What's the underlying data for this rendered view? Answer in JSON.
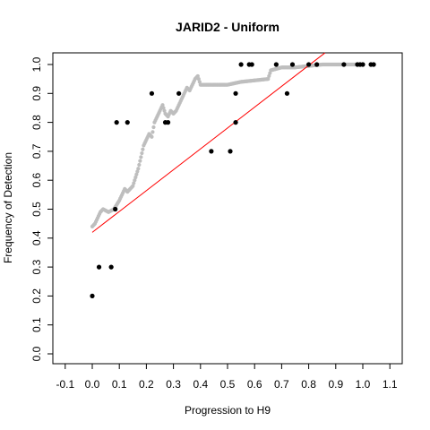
{
  "chart_data": {
    "type": "scatter",
    "title": "JARID2 - Uniform",
    "xlabel": "Progression to H9",
    "ylabel": "Frequency of Detection",
    "xlim": [
      -0.1,
      1.1
    ],
    "ylim": [
      0.0,
      1.0
    ],
    "xticks": [
      "-0.1",
      "0.0",
      "0.1",
      "0.2",
      "0.3",
      "0.4",
      "0.5",
      "0.6",
      "0.7",
      "0.8",
      "0.9",
      "1.0",
      "1.1"
    ],
    "yticks": [
      "0.0",
      "0.1",
      "0.2",
      "0.3",
      "0.4",
      "0.5",
      "0.6",
      "0.7",
      "0.8",
      "0.9",
      "1.0"
    ],
    "observed_points": {
      "color": "#000000",
      "x": [
        0.0,
        0.025,
        0.07,
        0.085,
        0.09,
        0.13,
        0.22,
        0.27,
        0.28,
        0.32,
        0.44,
        0.51,
        0.53,
        0.53,
        0.55,
        0.58,
        0.59,
        0.68,
        0.72,
        0.74,
        0.8,
        0.83,
        0.93,
        0.98,
        0.99,
        1.0,
        1.03,
        1.04
      ],
      "y": [
        0.2,
        0.3,
        0.3,
        0.5,
        0.8,
        0.8,
        0.9,
        0.8,
        0.8,
        0.9,
        0.7,
        0.7,
        0.8,
        0.9,
        1.0,
        1.0,
        1.0,
        1.0,
        0.9,
        1.0,
        1.0,
        1.0,
        1.0,
        1.0,
        1.0,
        1.0,
        1.0,
        1.0
      ]
    },
    "smoothed_curve": {
      "color": "#bebebe",
      "x": [
        0.0,
        0.01,
        0.02,
        0.03,
        0.04,
        0.06,
        0.08,
        0.1,
        0.11,
        0.12,
        0.13,
        0.14,
        0.15,
        0.16,
        0.17,
        0.18,
        0.19,
        0.2,
        0.21,
        0.22,
        0.23,
        0.24,
        0.25,
        0.26,
        0.27,
        0.28,
        0.29,
        0.3,
        0.31,
        0.32,
        0.33,
        0.34,
        0.35,
        0.36,
        0.37,
        0.38,
        0.39,
        0.4,
        0.45,
        0.5,
        0.55,
        0.6,
        0.65,
        0.66,
        0.7,
        0.75,
        0.8,
        0.85,
        0.9,
        0.95,
        1.0
      ],
      "y": [
        0.44,
        0.45,
        0.47,
        0.49,
        0.5,
        0.49,
        0.5,
        0.53,
        0.55,
        0.57,
        0.56,
        0.57,
        0.58,
        0.61,
        0.64,
        0.68,
        0.72,
        0.74,
        0.76,
        0.75,
        0.8,
        0.82,
        0.84,
        0.86,
        0.83,
        0.82,
        0.84,
        0.83,
        0.84,
        0.86,
        0.88,
        0.9,
        0.92,
        0.91,
        0.93,
        0.95,
        0.96,
        0.93,
        0.93,
        0.93,
        0.94,
        0.945,
        0.95,
        0.98,
        0.99,
        0.99,
        0.995,
        1.0,
        1.0,
        1.0,
        1.0
      ]
    },
    "fit_line": {
      "color": "#ff0000",
      "x": [
        0.0,
        0.86
      ],
      "y": [
        0.42,
        1.04
      ]
    },
    "grid": false,
    "legend": "none"
  }
}
